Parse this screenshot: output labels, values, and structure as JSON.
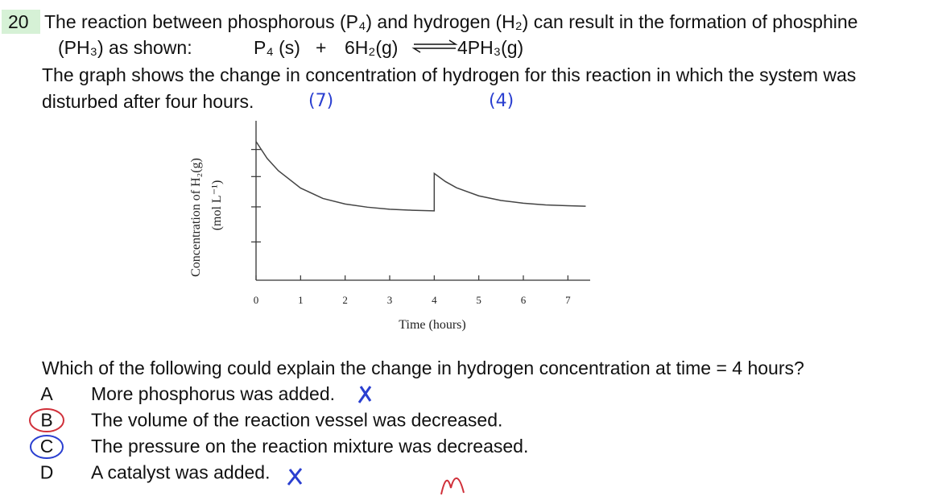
{
  "question": {
    "number": "20",
    "lines": [
      "The reaction between phosphorous (P₄) and hydrogen (H₂) can result in the formation of phosphine",
      "(PH₃) as shown:",
      "The graph shows the change in concentration of hydrogen for this reaction in which the system was",
      "disturbed after four hours."
    ],
    "equation": {
      "reactant1": "P₄ (s)",
      "plus": "+",
      "reactant2": "6H₂(g)",
      "product": "4PH₃(g)"
    },
    "annotations": [
      "(7)",
      "(4)"
    ]
  },
  "chart_data": {
    "type": "line",
    "x_label": "Time (hours)",
    "y_label": "Concentration of H₂(g)",
    "y_unit": "(mol L⁻¹)",
    "x": [
      0,
      0.25,
      0.5,
      1,
      1.5,
      2,
      2.5,
      3,
      3.5,
      4,
      4,
      4.25,
      4.5,
      5,
      5.5,
      6,
      6.5,
      7,
      7.4
    ],
    "series": [
      {
        "color": "#444444",
        "values": [
          8.7,
          7.64,
          6.87,
          5.78,
          5.13,
          4.78,
          4.58,
          4.45,
          4.39,
          4.35,
          6.7,
          6.19,
          5.8,
          5.29,
          5.0,
          4.83,
          4.72,
          4.67,
          4.64
        ]
      }
    ],
    "xlim": [
      0,
      7.5
    ],
    "ylim": [
      0,
      10
    ],
    "xticks": [
      0,
      1,
      2,
      3,
      4,
      5,
      6,
      7
    ],
    "yticks": [
      2.4,
      4.6,
      6.5,
      8.2
    ]
  },
  "prompt": "Which of the following could explain the change in hydrogen concentration at time = 4 hours?",
  "options": [
    {
      "letter": "A",
      "text": "More phosphorus was added."
    },
    {
      "letter": "B",
      "text": "The volume of the reaction vessel was decreased."
    },
    {
      "letter": "C",
      "text": "The pressure on the reaction mixture was decreased."
    },
    {
      "letter": "D",
      "text": "A catalyst was added."
    }
  ]
}
